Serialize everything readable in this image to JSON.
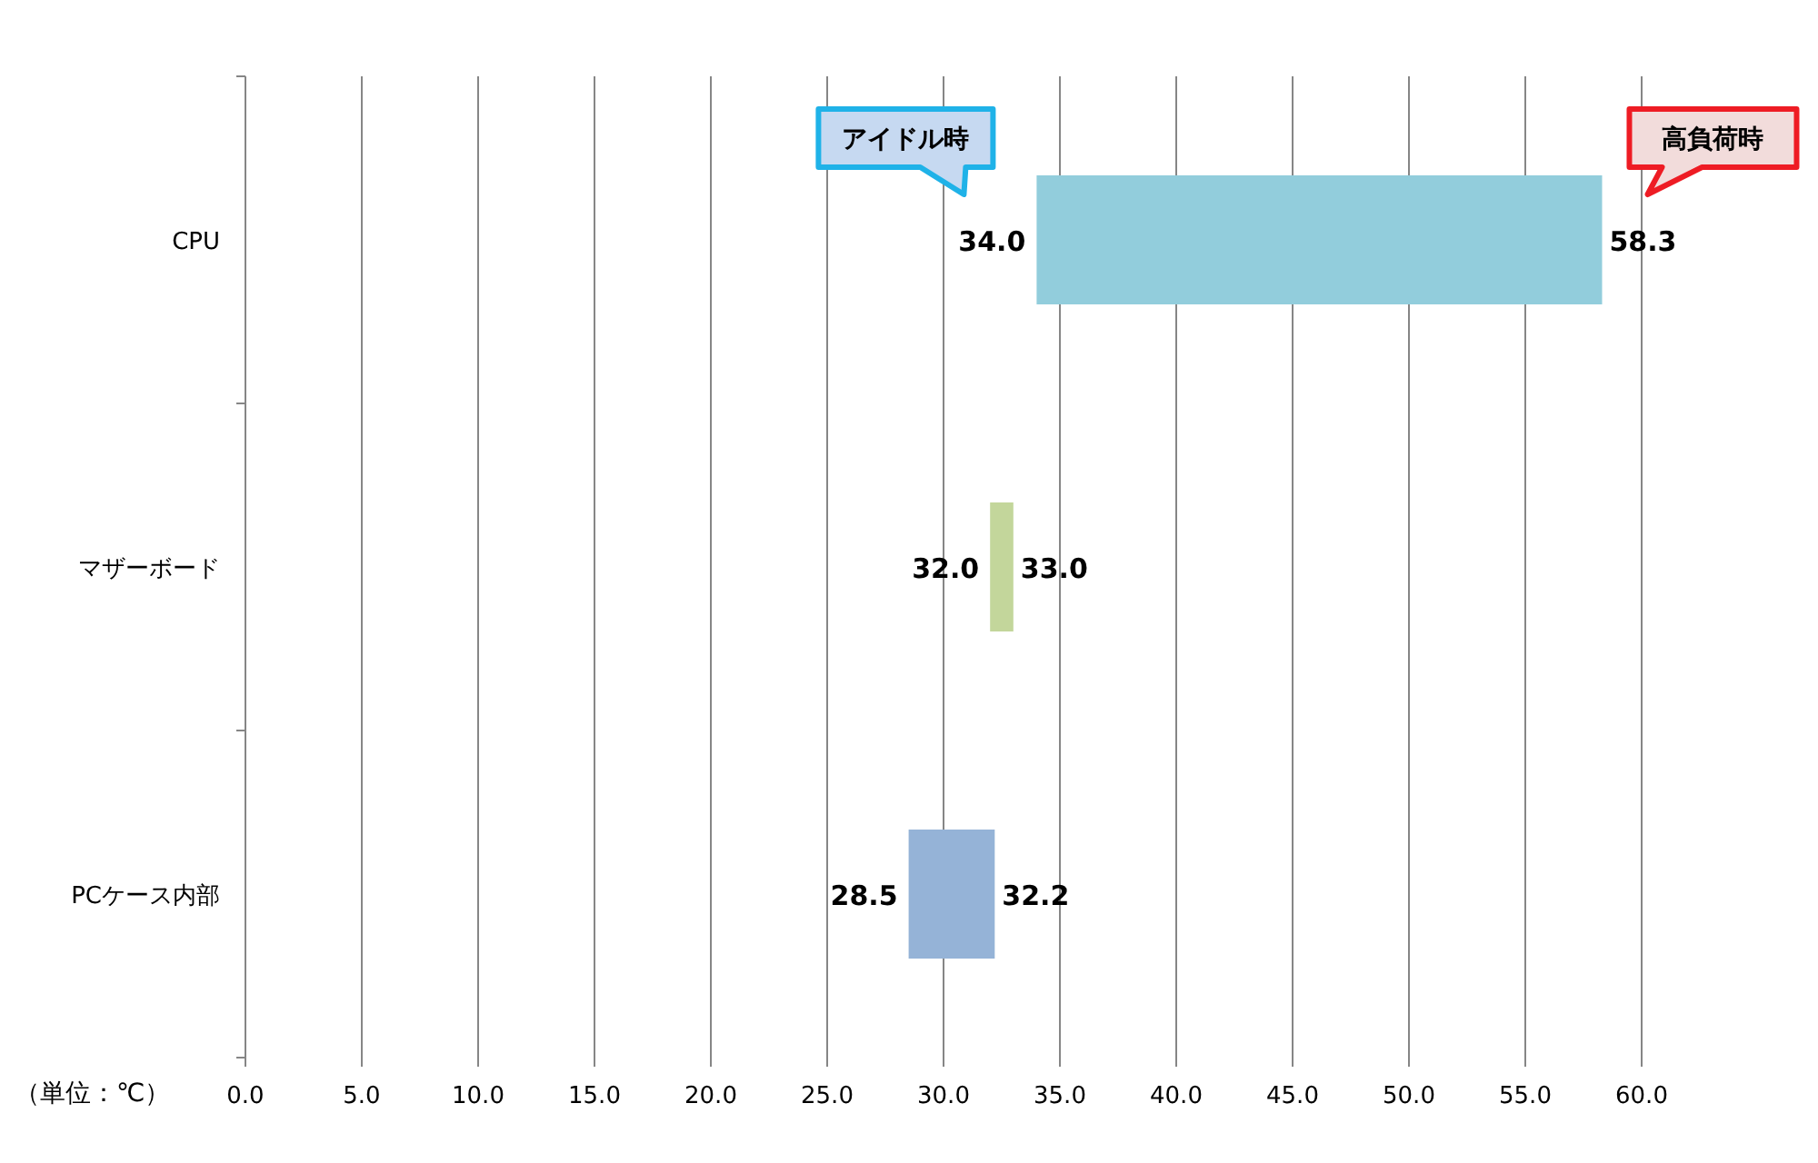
{
  "chart_data": {
    "type": "bar",
    "orientation": "horizontal",
    "xlabel": "（単位：℃）",
    "categories": [
      "CPU",
      "マザーボード",
      "PCケース内部"
    ],
    "base": [
      34.0,
      32.0,
      28.5
    ],
    "values": [
      24.3,
      1.0,
      3.7
    ],
    "colors": [
      "#92cddc",
      "#c3d69b",
      "#95b3d7"
    ],
    "value_labels": [
      "58.3",
      "33.0",
      "32.2"
    ],
    "annotations": [
      {
        "text": "34.0",
        "x": 34.0,
        "y": "CPU"
      },
      {
        "text": "32.0",
        "x": 32.0,
        "y": "マザーボード"
      },
      {
        "text": "28.5",
        "x": 28.5,
        "y": "PCケース内部"
      },
      "アイドル時",
      "高負荷時"
    ],
    "xlim": [
      0,
      60
    ],
    "xticks": [
      {
        "value": 0,
        "label": "0.0"
      },
      {
        "value": 5,
        "label": "5.0"
      },
      {
        "value": 10,
        "label": "10.0"
      },
      {
        "value": 15,
        "label": "15.0"
      },
      {
        "value": 20,
        "label": "20.0"
      },
      {
        "value": 25,
        "label": "25.0"
      },
      {
        "value": 30,
        "label": "30.0"
      },
      {
        "value": 35,
        "label": "35.0"
      },
      {
        "value": 40,
        "label": "40.0"
      },
      {
        "value": 45,
        "label": "45.0"
      },
      {
        "value": 50,
        "label": "50.0"
      },
      {
        "value": 55,
        "label": "55.0"
      },
      {
        "value": 60,
        "label": "60.0"
      }
    ],
    "grid": "x"
  }
}
